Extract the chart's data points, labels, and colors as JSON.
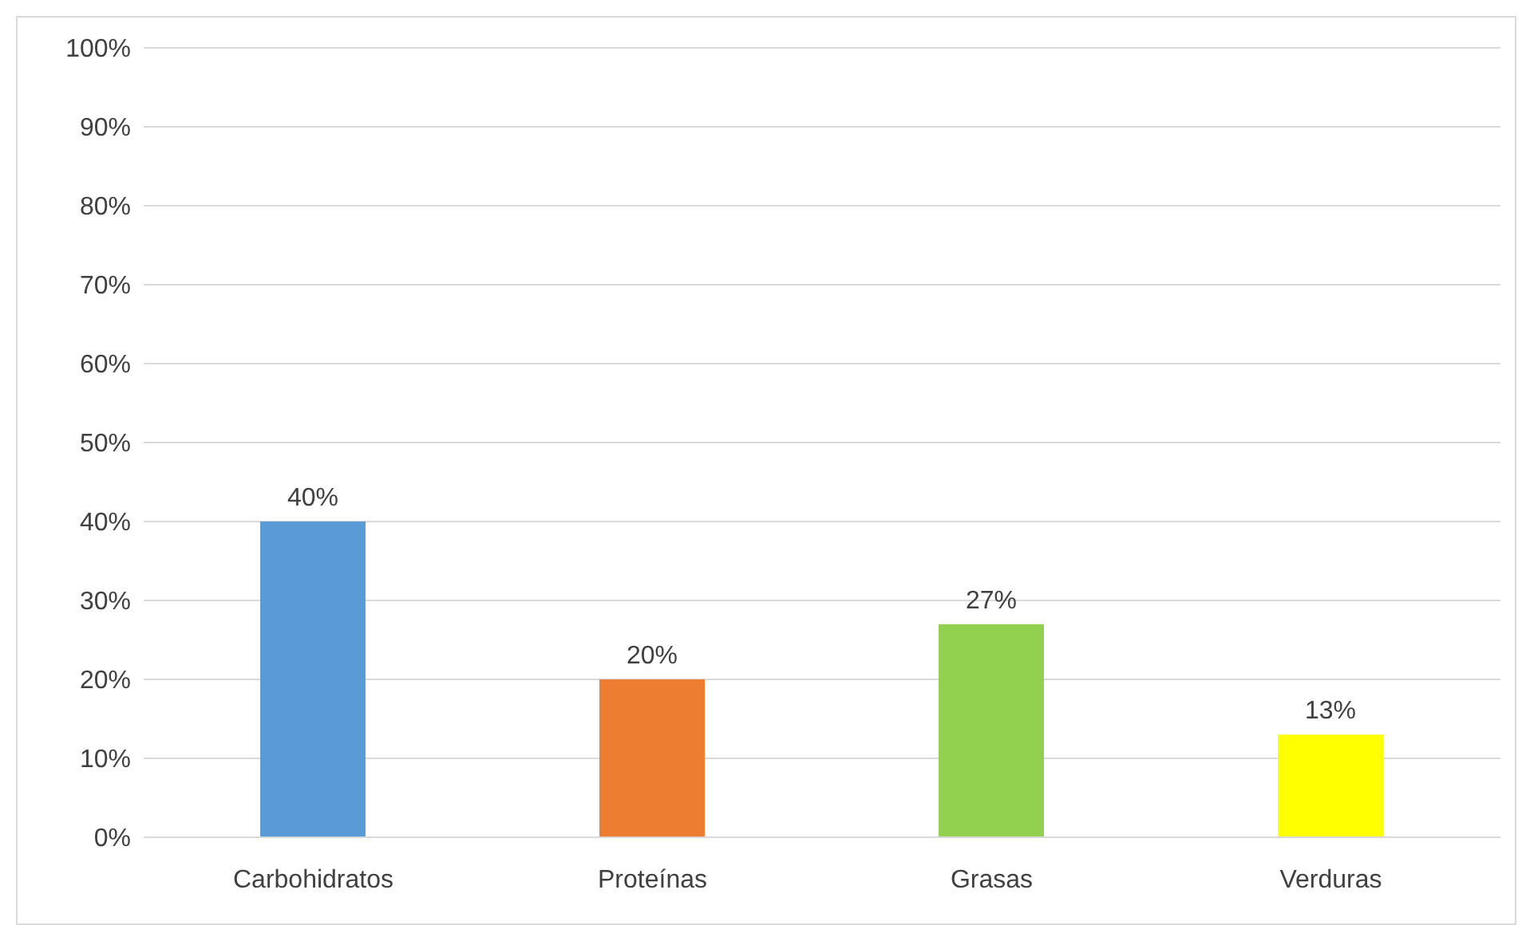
{
  "chart_data": {
    "type": "bar",
    "categories": [
      "Carbohidratos",
      "Proteínas",
      "Grasas",
      "Verduras"
    ],
    "values": [
      40,
      20,
      27,
      13
    ],
    "colors": [
      "#5b9bd5",
      "#ed7d31",
      "#92d050",
      "#ffff00"
    ],
    "value_labels": [
      "40%",
      "20%",
      "27%",
      "13%"
    ],
    "ylim": [
      0,
      100
    ],
    "yticks": [
      {
        "value": 0,
        "label": "0%"
      },
      {
        "value": 10,
        "label": "10%"
      },
      {
        "value": 20,
        "label": "20%"
      },
      {
        "value": 30,
        "label": "30%"
      },
      {
        "value": 40,
        "label": "40%"
      },
      {
        "value": 50,
        "label": "50%"
      },
      {
        "value": 60,
        "label": "60%"
      },
      {
        "value": 70,
        "label": "70%"
      },
      {
        "value": 80,
        "label": "80%"
      },
      {
        "value": 90,
        "label": "90%"
      },
      {
        "value": 100,
        "label": "100%"
      }
    ],
    "grid": "y"
  }
}
